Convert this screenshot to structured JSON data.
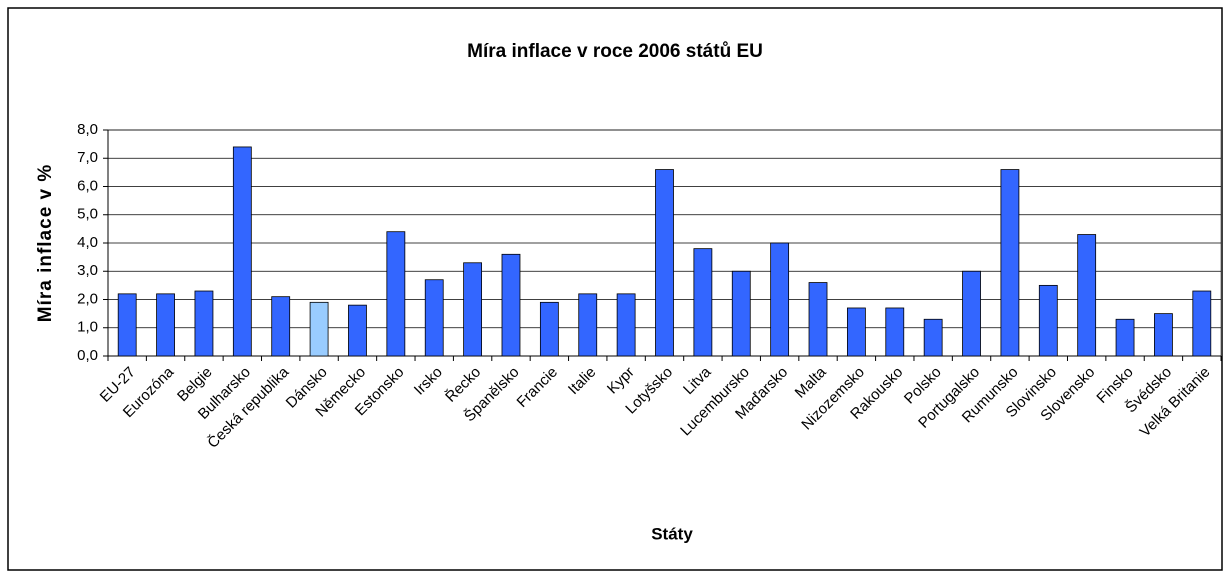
{
  "chart_data": {
    "type": "bar",
    "title": "Míra inflace v roce 2006 států EU",
    "x_label": "Státy",
    "y_label": "Míra inflace v %",
    "categories": [
      "EU-27",
      "Eurozóna",
      "Belgie",
      "Bulharsko",
      "Česká republika",
      "Dánsko",
      "Německo",
      "Estonsko",
      "Irsko",
      "Řecko",
      "Španělsko",
      "Francie",
      "Italie",
      "Kypr",
      "Lotyšsko",
      "Litva",
      "Lucembursko",
      "Maďarsko",
      "Malta",
      "Nizozemsko",
      "Rakousko",
      "Polsko",
      "Portugalsko",
      "Rumunsko",
      "Slovinsko",
      "Slovensko",
      "Finsko",
      "Švédsko",
      "Velká Britanie"
    ],
    "values": [
      2.2,
      2.2,
      2.3,
      7.4,
      2.1,
      1.9,
      1.8,
      4.4,
      2.7,
      3.3,
      3.6,
      1.9,
      2.2,
      2.2,
      6.6,
      3.8,
      3.0,
      4.0,
      2.6,
      1.7,
      1.7,
      1.3,
      3.0,
      6.6,
      2.5,
      4.3,
      1.3,
      1.5,
      2.3
    ],
    "color": "#3366ff",
    "highlight": {
      "index": 5,
      "color": "#99ccff"
    },
    "ylim": [
      0,
      8
    ],
    "yticks": [
      {
        "value": 0,
        "label": "0,0"
      },
      {
        "value": 1,
        "label": "1,0"
      },
      {
        "value": 2,
        "label": "2,0"
      },
      {
        "value": 3,
        "label": "3,0"
      },
      {
        "value": 4,
        "label": "4,0"
      },
      {
        "value": 5,
        "label": "5,0"
      },
      {
        "value": 6,
        "label": "6,0"
      },
      {
        "value": 7,
        "label": "7,0"
      },
      {
        "value": 8,
        "label": "8,0"
      }
    ],
    "grid": true
  }
}
